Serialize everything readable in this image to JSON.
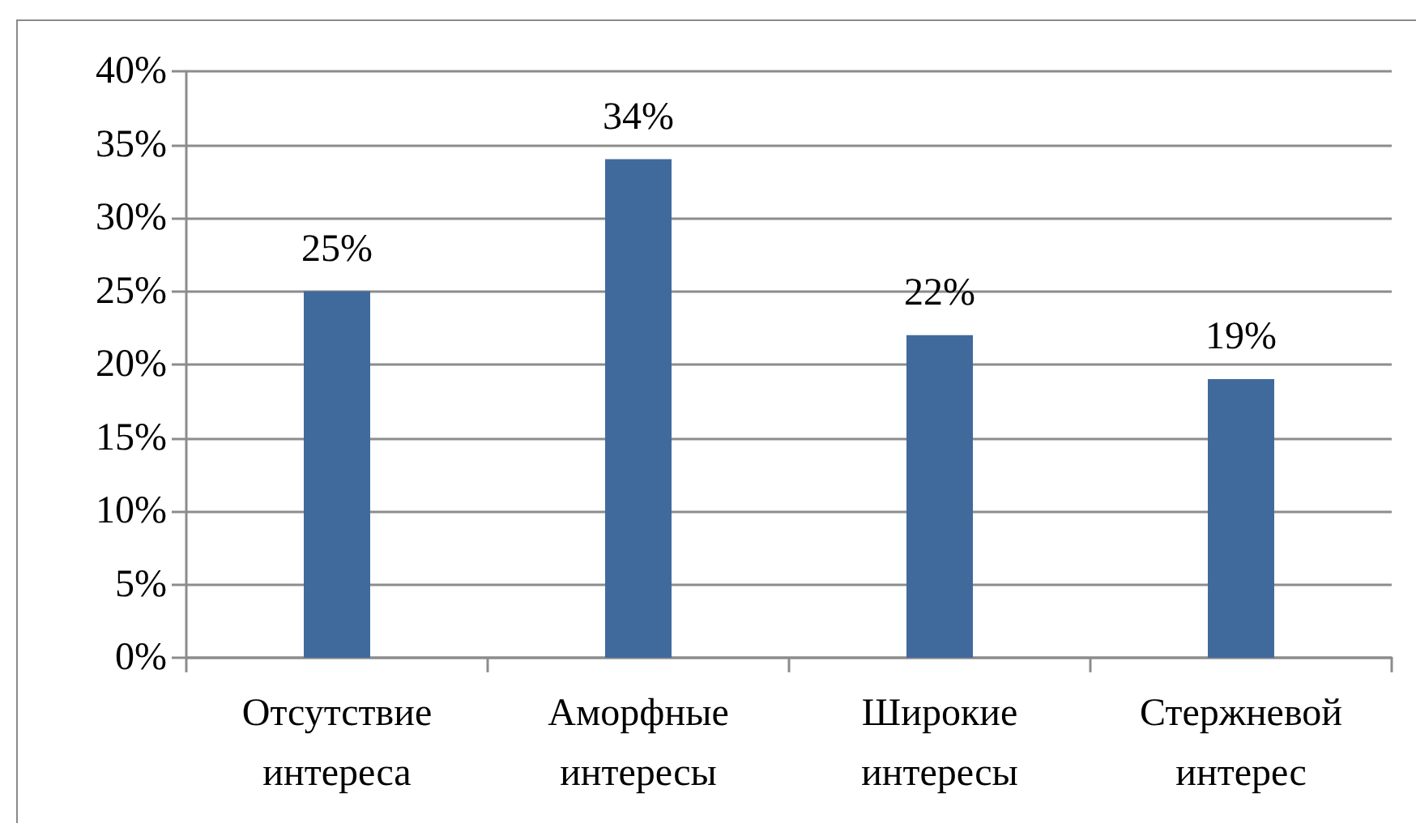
{
  "chart_data": {
    "type": "bar",
    "categories": [
      "Отсутствие интереса",
      "Аморфные интересы",
      "Широкие интересы",
      "Стержневой интерес"
    ],
    "values": [
      25,
      34,
      22,
      19
    ],
    "color": "#416a9c",
    "value_labels": [
      "25%",
      "34%",
      "22%",
      "19%"
    ],
    "ylim": [
      0,
      40
    ],
    "yticks": [
      {
        "value": 0,
        "label": "0%"
      },
      {
        "value": 5,
        "label": "5%"
      },
      {
        "value": 10,
        "label": "10%"
      },
      {
        "value": 15,
        "label": "15%"
      },
      {
        "value": 20,
        "label": "20%"
      },
      {
        "value": 25,
        "label": "25%"
      },
      {
        "value": 30,
        "label": "30%"
      },
      {
        "value": 35,
        "label": "35%"
      },
      {
        "value": 40,
        "label": "40%"
      }
    ],
    "grid": "y"
  }
}
